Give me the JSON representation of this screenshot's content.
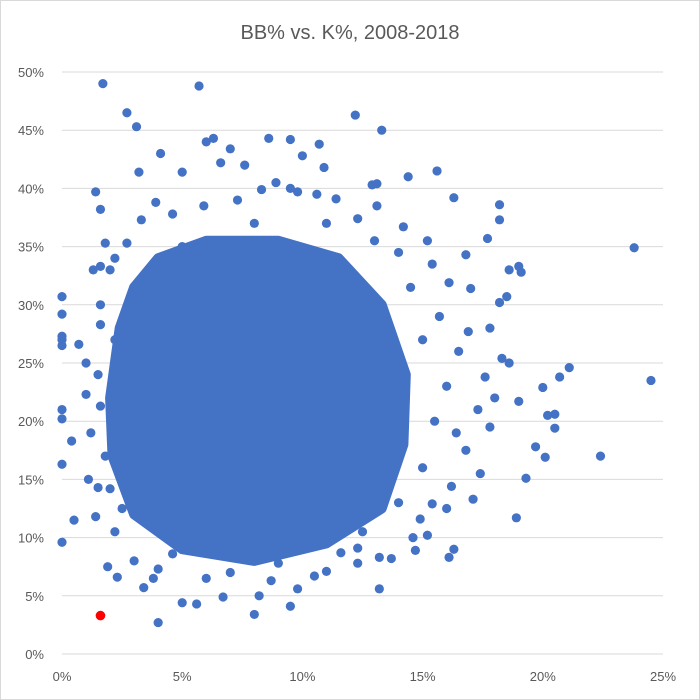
{
  "chart_data": {
    "type": "scatter",
    "title": "BB% vs. K%, 2008-2018",
    "xlabel": "",
    "ylabel": "",
    "xlim": [
      0,
      25
    ],
    "ylim": [
      0,
      50
    ],
    "x_ticks": [
      "0%",
      "5%",
      "10%",
      "15%",
      "20%",
      "25%"
    ],
    "y_ticks": [
      "0%",
      "5%",
      "10%",
      "15%",
      "20%",
      "25%",
      "30%",
      "35%",
      "40%",
      "45%",
      "50%"
    ],
    "grid": "horizontal",
    "colors": {
      "series": "#4472c4",
      "highlight": "#ff0000",
      "grid": "#d9d9d9"
    },
    "series": [
      {
        "points": [
          [
            1.7,
            49
          ],
          [
            5.7,
            48.8
          ],
          [
            2.7,
            46.5
          ],
          [
            3.1,
            45.3
          ],
          [
            12.2,
            46.3
          ],
          [
            13.3,
            45
          ],
          [
            6.0,
            44
          ],
          [
            6.3,
            44.3
          ],
          [
            8.6,
            44.3
          ],
          [
            9.5,
            44.2
          ],
          [
            10.7,
            43.8
          ],
          [
            4.1,
            43
          ],
          [
            7,
            43.4
          ],
          [
            10,
            42.8
          ],
          [
            6.6,
            42.2
          ],
          [
            7.6,
            42
          ],
          [
            10.9,
            41.8
          ],
          [
            14.4,
            41
          ],
          [
            15.6,
            41.5
          ],
          [
            3.2,
            41.4
          ],
          [
            5.0,
            41.4
          ],
          [
            12.9,
            40.3
          ],
          [
            13.1,
            40.4
          ],
          [
            8.9,
            40.5
          ],
          [
            9.5,
            40
          ],
          [
            16.3,
            39.2
          ],
          [
            1.4,
            39.7
          ],
          [
            1.6,
            38.2
          ],
          [
            3.9,
            38.8
          ],
          [
            18.2,
            38.6
          ],
          [
            18.2,
            37.3
          ],
          [
            17.7,
            35.7
          ],
          [
            16.8,
            34.3
          ],
          [
            19,
            33.3
          ],
          [
            18.6,
            33
          ],
          [
            19.1,
            32.8
          ],
          [
            23.8,
            34.9
          ],
          [
            17,
            31.4
          ],
          [
            18.2,
            30.2
          ],
          [
            18.5,
            30.7
          ],
          [
            17.8,
            28
          ],
          [
            18.3,
            25.4
          ],
          [
            18.6,
            25
          ],
          [
            21.1,
            24.6
          ],
          [
            20.7,
            23.8
          ],
          [
            24.5,
            23.5
          ],
          [
            20,
            22.9
          ],
          [
            19,
            21.7
          ],
          [
            20.2,
            20.5
          ],
          [
            20.5,
            20.6
          ],
          [
            20.5,
            19.4
          ],
          [
            19.7,
            17.8
          ],
          [
            20.1,
            16.9
          ],
          [
            22.4,
            17
          ],
          [
            19.3,
            15.1
          ],
          [
            18.9,
            11.7
          ],
          [
            17.1,
            13.3
          ],
          [
            16.3,
            9
          ],
          [
            16.1,
            8.3
          ],
          [
            15.2,
            10.2
          ],
          [
            14.7,
            8.9
          ],
          [
            13.2,
            5.6
          ],
          [
            13.2,
            8.3
          ],
          [
            12.3,
            7.8
          ],
          [
            10.5,
            6.7
          ],
          [
            11,
            7.1
          ],
          [
            9.5,
            4.1
          ],
          [
            9.8,
            5.6
          ],
          [
            8.7,
            6.3
          ],
          [
            8.0,
            3.4
          ],
          [
            8.2,
            5
          ],
          [
            6.7,
            4.9
          ],
          [
            5.6,
            4.3
          ],
          [
            5,
            4.4
          ],
          [
            4.0,
            2.7
          ],
          [
            3.4,
            5.7
          ],
          [
            2.3,
            6.6
          ],
          [
            1.9,
            7.5
          ],
          [
            1.4,
            11.8
          ],
          [
            0.5,
            11.5
          ],
          [
            0,
            9.6
          ],
          [
            0,
            16.3
          ],
          [
            0.4,
            18.3
          ],
          [
            0,
            20.2
          ],
          [
            0,
            21
          ],
          [
            0,
            26.5
          ],
          [
            0,
            27
          ],
          [
            0,
            27.3
          ],
          [
            0,
            29.2
          ],
          [
            0,
            30.7
          ],
          [
            0.7,
            26.6
          ],
          [
            1,
            25
          ],
          [
            1.3,
            33
          ],
          [
            1.6,
            33.3
          ],
          [
            1.8,
            35.3
          ],
          [
            2,
            33
          ],
          [
            1.6,
            30
          ],
          [
            1.6,
            28.3
          ],
          [
            1,
            22.3
          ],
          [
            1.2,
            19
          ],
          [
            1.1,
            15
          ],
          [
            1.5,
            14.3
          ],
          [
            2,
            14.2
          ],
          [
            3,
            8
          ],
          [
            4,
            7.3
          ],
          [
            3.8,
            6.5
          ],
          [
            11.6,
            8.7
          ],
          [
            12.3,
            9.1
          ],
          [
            13.7,
            8.2
          ],
          [
            14.6,
            10
          ],
          [
            16,
            12.5
          ],
          [
            17.4,
            15.5
          ],
          [
            17.8,
            19.5
          ],
          [
            18,
            22
          ],
          [
            17.6,
            23.8
          ],
          [
            16.5,
            26
          ],
          [
            15.7,
            29
          ],
          [
            15.4,
            33.5
          ],
          [
            15.2,
            35.5
          ],
          [
            14.2,
            36.7
          ],
          [
            13.1,
            38.5
          ],
          [
            11.4,
            39.1
          ],
          [
            10.6,
            39.5
          ],
          [
            9.8,
            39.7
          ],
          [
            8.3,
            39.9
          ],
          [
            7.3,
            39
          ],
          [
            5.9,
            38.5
          ],
          [
            4.6,
            37.8
          ],
          [
            3.3,
            37.3
          ],
          [
            2.7,
            35.3
          ],
          [
            2.2,
            34
          ],
          [
            16.1,
            31.9
          ],
          [
            16.9,
            27.7
          ],
          [
            17.3,
            21
          ],
          [
            16.8,
            17.5
          ],
          [
            16.2,
            14.4
          ],
          [
            15.4,
            12.9
          ],
          [
            14.9,
            11.6
          ],
          [
            4.6,
            8.6
          ],
          [
            2.2,
            10.5
          ],
          [
            1.6,
            21.3
          ],
          [
            1.5,
            24
          ],
          [
            12.3,
            37.4
          ],
          [
            14,
            34.5
          ],
          [
            15,
            27
          ],
          [
            15.5,
            20
          ],
          [
            15,
            16
          ],
          [
            14,
            13
          ],
          [
            12.5,
            10.5
          ],
          [
            6,
            6.5
          ],
          [
            7,
            7
          ],
          [
            9,
            7.8
          ],
          [
            2.5,
            12.5
          ],
          [
            1.8,
            17
          ],
          [
            2.2,
            27
          ],
          [
            3,
            31
          ],
          [
            5,
            35
          ],
          [
            8,
            37
          ],
          [
            11,
            37
          ],
          [
            13,
            35.5
          ],
          [
            14.5,
            31.5
          ],
          [
            16,
            23
          ],
          [
            16.4,
            19
          ]
        ]
      }
    ],
    "highlight_point": [
      1.6,
      3.3
    ]
  }
}
